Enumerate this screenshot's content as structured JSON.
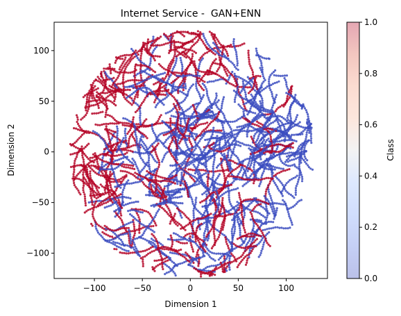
{
  "chart_data": {
    "type": "scatter",
    "title": "Internet Service -  GAN+ENN",
    "xlabel": "Dimension 1",
    "ylabel": "Dimension 2",
    "xlim": [
      -142,
      143
    ],
    "ylim": [
      -125,
      128
    ],
    "xticks": [
      -100,
      -50,
      0,
      50,
      100
    ],
    "yticks": [
      -100,
      -50,
      0,
      50,
      100
    ],
    "grid": false,
    "colorbar": {
      "label": "Class",
      "range": [
        0.0,
        1.0
      ],
      "ticks": [
        "0.0",
        "0.2",
        "0.4",
        "0.6",
        "0.8",
        "1.0"
      ],
      "colormap": "coolwarm",
      "alpha": 0.35
    },
    "colors": {
      "class_0": "#3b4cc0",
      "class_1": "#b40426"
    },
    "series": [
      {
        "class": 0,
        "approx_extent": {
          "x": [
            -90,
            125
          ],
          "y": [
            -100,
            95
          ]
        },
        "description_of_clusters": "Dense blue region centered right-of-middle (x≈-20..120, y≈-90..90)"
      },
      {
        "class": 1,
        "approx_extent": {
          "x": [
            -128,
            132
          ],
          "y": [
            -112,
            115
          ]
        },
        "description_of_clusters": "Red points dominate the left and upper-left perimeter and bottom edge"
      }
    ]
  }
}
